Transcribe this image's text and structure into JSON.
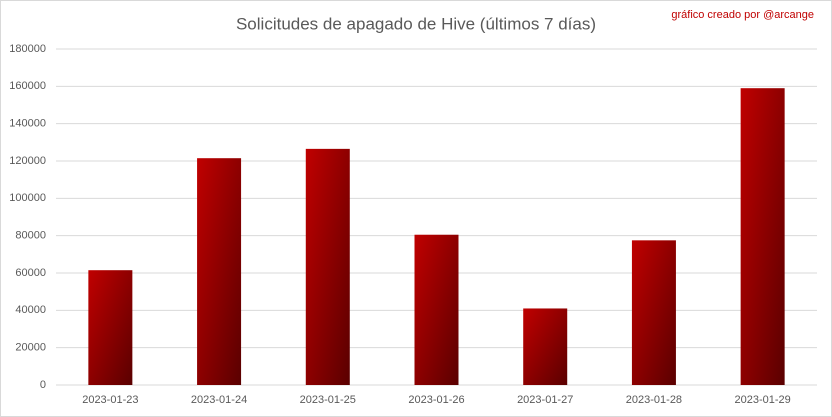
{
  "chart_data": {
    "type": "bar",
    "title": "Solicitudes de apagado de Hive (últimos 7 días)",
    "annotation": "gráfico creado por @arcange",
    "categories": [
      "2023-01-23",
      "2023-01-24",
      "2023-01-25",
      "2023-01-26",
      "2023-01-27",
      "2023-01-28",
      "2023-01-29"
    ],
    "values": [
      61500,
      121500,
      126500,
      80500,
      41000,
      77500,
      159000
    ],
    "color": "#c00000",
    "ylim": [
      0,
      180000
    ],
    "yticks": [
      0,
      20000,
      40000,
      60000,
      80000,
      100000,
      120000,
      140000,
      160000,
      180000
    ],
    "grid": true
  }
}
